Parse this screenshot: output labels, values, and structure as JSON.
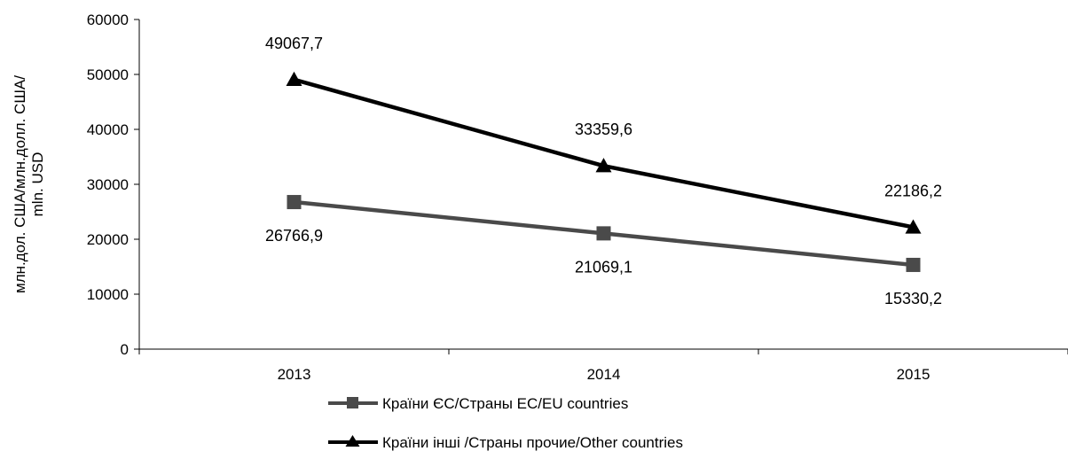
{
  "chart_data": {
    "type": "line",
    "categories": [
      "2013",
      "2014",
      "2015"
    ],
    "ylabel_lines": [
      "млн.дол. США/млн.долл. США/",
      "mln. USD"
    ],
    "ylim": [
      0,
      60000
    ],
    "yticks": [
      0,
      10000,
      20000,
      30000,
      40000,
      50000,
      60000
    ],
    "grid": false,
    "legend_position": "bottom",
    "series": [
      {
        "name": "Країни ЄС/Страны ЕС/EU countries",
        "values": [
          26766.9,
          21069.1,
          15330.2
        ],
        "data_labels": [
          "26766,9",
          "21069,1",
          "15330,2"
        ],
        "color": "#4a4a4a",
        "marker": "square"
      },
      {
        "name": "Країни інші /Страны прочие/Other countries",
        "values": [
          49067.7,
          33359.6,
          22186.2
        ],
        "data_labels": [
          "49067,7",
          "33359,6",
          "22186,2"
        ],
        "color": "#000000",
        "marker": "triangle"
      }
    ]
  }
}
